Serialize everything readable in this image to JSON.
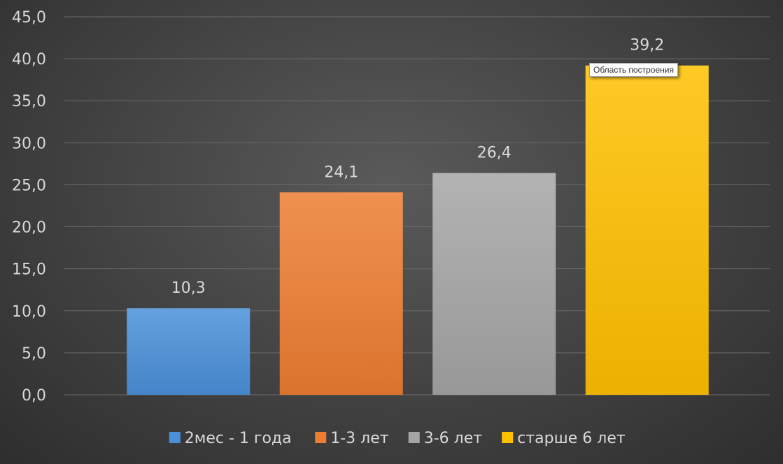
{
  "chart_data": {
    "type": "bar",
    "categories": [
      "2мес - 1 года",
      "1-3 лет",
      "3-6 лет",
      "старше 6 лет"
    ],
    "values": [
      10.3,
      24.1,
      26.4,
      39.2
    ],
    "value_labels": [
      "10,3",
      "24,1",
      "26,4",
      "39,2"
    ],
    "ylim": [
      0,
      45
    ],
    "yticks": [
      0,
      5,
      10,
      15,
      20,
      25,
      30,
      35,
      40,
      45
    ],
    "ytick_labels": [
      "0,0",
      "5,0",
      "10,0",
      "15,0",
      "20,0",
      "25,0",
      "30,0",
      "35,0",
      "40,0",
      "45,0"
    ],
    "colors": [
      "#4a90d9",
      "#ed7d31",
      "#a5a5a5",
      "#ffc000"
    ],
    "grid": true,
    "legend": "bottom"
  },
  "tooltip": {
    "text": "Область построения"
  }
}
